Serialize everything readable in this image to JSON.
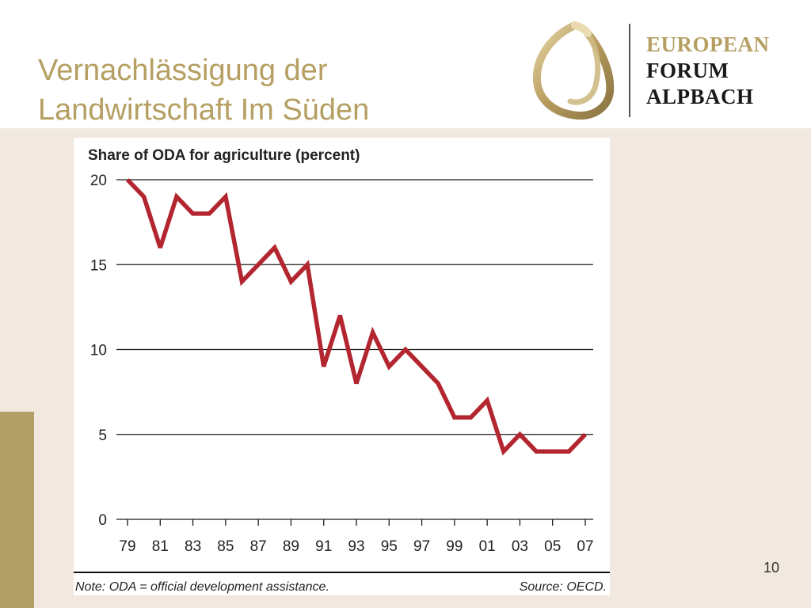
{
  "slide": {
    "title_lines": [
      "Vernachlässigung der",
      "Landwirtschaft Im Süden"
    ],
    "page_number": "10",
    "title_color": "#b59f62",
    "background_color": "#f1e9df",
    "accent_color": "#b29f66"
  },
  "logo": {
    "line1": "EUROPEAN",
    "line2": "FORUM",
    "line3": "ALPBACH",
    "line1_color": "#b59f62",
    "line23_color": "#1a1a1a",
    "mark_icon": "loop-ribbon-icon"
  },
  "chart_data": {
    "type": "line",
    "title": "Share of ODA for agriculture (percent)",
    "x": [
      1979,
      1980,
      1981,
      1982,
      1983,
      1984,
      1985,
      1986,
      1987,
      1988,
      1989,
      1990,
      1991,
      1992,
      1993,
      1994,
      1995,
      1996,
      1997,
      1998,
      1999,
      2000,
      2001,
      2002,
      2003,
      2004,
      2005,
      2006,
      2007
    ],
    "x_tick_labels": [
      "79",
      "81",
      "83",
      "85",
      "87",
      "89",
      "91",
      "93",
      "95",
      "97",
      "99",
      "01",
      "03",
      "05",
      "07"
    ],
    "series": [
      {
        "values": [
          20,
          19,
          16,
          19,
          18,
          18,
          19,
          14,
          15,
          16,
          14,
          15,
          9,
          12,
          8,
          11,
          9,
          10,
          9,
          8,
          6,
          6,
          7,
          4,
          5,
          4,
          4,
          4,
          5
        ],
        "color": "#b3262f"
      }
    ],
    "ylim": [
      0,
      20
    ],
    "y_ticks": [
      0,
      5,
      10,
      15,
      20
    ],
    "grid": "horizontal",
    "note": "Note: ODA = official development assistance.",
    "source": "Source: OECD."
  }
}
